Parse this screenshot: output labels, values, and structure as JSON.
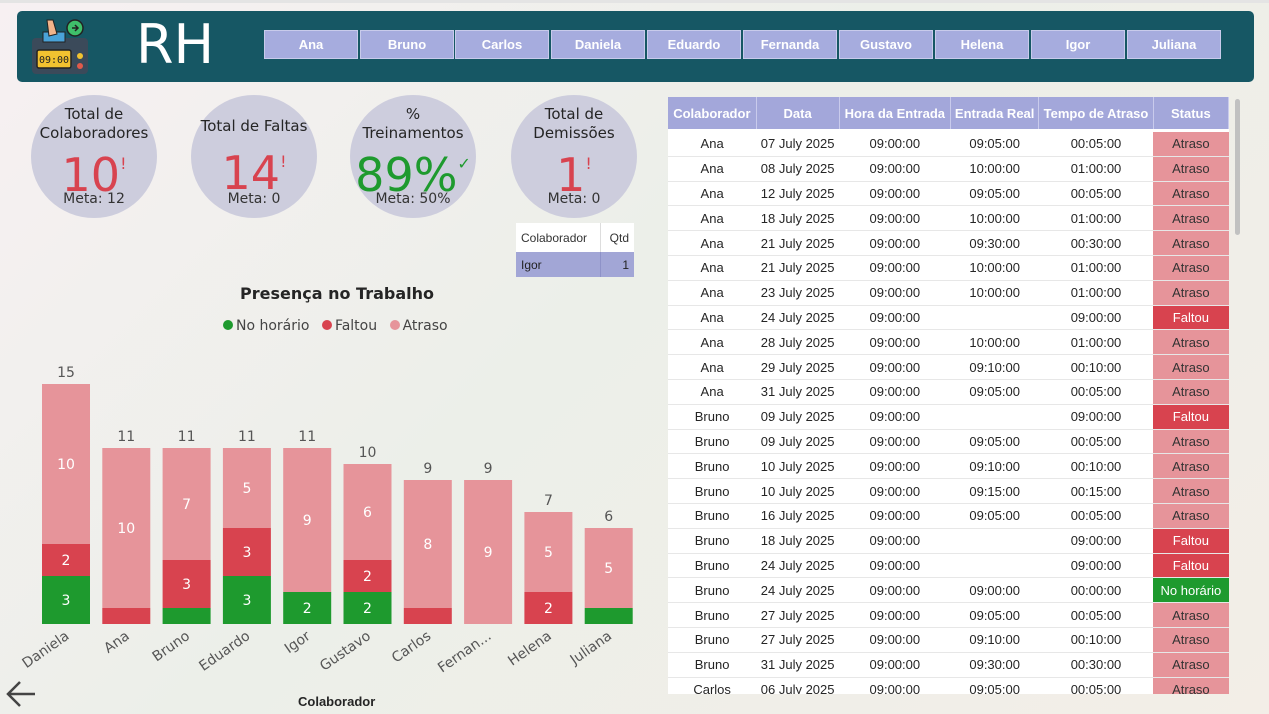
{
  "header": {
    "title": "RH",
    "buttons": [
      "Ana",
      "Bruno",
      "Carlos",
      "Daniela",
      "Eduardo",
      "Fernanda",
      "Gustavo",
      "Helena",
      "Igor",
      "Juliana"
    ],
    "logo_clock": "09:00"
  },
  "kpis": [
    {
      "title_lines": [
        "Total de",
        "Colaboradores"
      ],
      "value": "10",
      "mark": "!",
      "meta": "Meta: 12",
      "color": "#d8434f"
    },
    {
      "title_lines": [
        "Total de Faltas"
      ],
      "value": "14",
      "mark": "!",
      "meta": "Meta: 0",
      "color": "#d8434f"
    },
    {
      "title_lines": [
        "%",
        "Treinamentos"
      ],
      "value": "89%",
      "mark": "✓",
      "meta": "Meta: 50%",
      "color": "#1e9a2e"
    },
    {
      "title_lines": [
        "Total de",
        "Demissões"
      ],
      "value": "1",
      "mark": "!",
      "meta": "Meta: 0",
      "color": "#d8434f"
    }
  ],
  "mini_table": {
    "headers": [
      "Colaborador",
      "Qtd"
    ],
    "rows": [
      [
        "Igor",
        "1"
      ]
    ]
  },
  "chart_data": {
    "type": "bar",
    "stacked": true,
    "title": "Presença no Trabalho",
    "xlabel": "Colaborador",
    "categories": [
      "Daniela",
      "Ana",
      "Bruno",
      "Eduardo",
      "Igor",
      "Gustavo",
      "Carlos",
      "Fernan...",
      "Helena",
      "Juliana"
    ],
    "totals": [
      15,
      11,
      11,
      11,
      11,
      10,
      9,
      9,
      7,
      6
    ],
    "series": [
      {
        "name": "No horário",
        "color": "#1e9a2e",
        "values": [
          3,
          0,
          1,
          3,
          2,
          2,
          0,
          0,
          0,
          1
        ]
      },
      {
        "name": "Faltou",
        "color": "#d8434f",
        "values": [
          2,
          1,
          3,
          3,
          0,
          2,
          1,
          0,
          2,
          0
        ]
      },
      {
        "name": "Atraso",
        "color": "#e6949a",
        "values": [
          10,
          10,
          7,
          5,
          9,
          6,
          8,
          9,
          5,
          5
        ]
      }
    ],
    "data_labels": [
      [
        "3",
        "2",
        "10"
      ],
      [
        "",
        "",
        "10"
      ],
      [
        "",
        "3",
        "7"
      ],
      [
        "3",
        "3",
        "5"
      ],
      [
        "2",
        "",
        "9"
      ],
      [
        "2",
        "2",
        "6"
      ],
      [
        "",
        "",
        "8"
      ],
      [
        "",
        "",
        "9"
      ],
      [
        "",
        "2",
        "5"
      ],
      [
        "",
        "",
        "5"
      ]
    ]
  },
  "table": {
    "headers": [
      "Colaborador",
      "Data",
      "Hora da Entrada",
      "Entrada Real",
      "Tempo de Atraso",
      "Status"
    ],
    "rows": [
      [
        "Ana",
        "07 July 2025",
        "09:00:00",
        "09:05:00",
        "00:05:00",
        "Atraso"
      ],
      [
        "Ana",
        "08 July 2025",
        "09:00:00",
        "10:00:00",
        "01:00:00",
        "Atraso"
      ],
      [
        "Ana",
        "12 July 2025",
        "09:00:00",
        "09:05:00",
        "00:05:00",
        "Atraso"
      ],
      [
        "Ana",
        "18 July 2025",
        "09:00:00",
        "10:00:00",
        "01:00:00",
        "Atraso"
      ],
      [
        "Ana",
        "21 July 2025",
        "09:00:00",
        "09:30:00",
        "00:30:00",
        "Atraso"
      ],
      [
        "Ana",
        "21 July 2025",
        "09:00:00",
        "10:00:00",
        "01:00:00",
        "Atraso"
      ],
      [
        "Ana",
        "23 July 2025",
        "09:00:00",
        "10:00:00",
        "01:00:00",
        "Atraso"
      ],
      [
        "Ana",
        "24 July 2025",
        "09:00:00",
        "",
        "09:00:00",
        "Faltou"
      ],
      [
        "Ana",
        "28 July 2025",
        "09:00:00",
        "10:00:00",
        "01:00:00",
        "Atraso"
      ],
      [
        "Ana",
        "29 July 2025",
        "09:00:00",
        "09:10:00",
        "00:10:00",
        "Atraso"
      ],
      [
        "Ana",
        "31 July 2025",
        "09:00:00",
        "09:05:00",
        "00:05:00",
        "Atraso"
      ],
      [
        "Bruno",
        "09 July 2025",
        "09:00:00",
        "",
        "09:00:00",
        "Faltou"
      ],
      [
        "Bruno",
        "09 July 2025",
        "09:00:00",
        "09:05:00",
        "00:05:00",
        "Atraso"
      ],
      [
        "Bruno",
        "10 July 2025",
        "09:00:00",
        "09:10:00",
        "00:10:00",
        "Atraso"
      ],
      [
        "Bruno",
        "10 July 2025",
        "09:00:00",
        "09:15:00",
        "00:15:00",
        "Atraso"
      ],
      [
        "Bruno",
        "16 July 2025",
        "09:00:00",
        "09:05:00",
        "00:05:00",
        "Atraso"
      ],
      [
        "Bruno",
        "18 July 2025",
        "09:00:00",
        "",
        "09:00:00",
        "Faltou"
      ],
      [
        "Bruno",
        "24 July 2025",
        "09:00:00",
        "",
        "09:00:00",
        "Faltou"
      ],
      [
        "Bruno",
        "24 July 2025",
        "09:00:00",
        "09:00:00",
        "00:00:00",
        "No horário"
      ],
      [
        "Bruno",
        "27 July 2025",
        "09:00:00",
        "09:05:00",
        "00:05:00",
        "Atraso"
      ],
      [
        "Bruno",
        "27 July 2025",
        "09:00:00",
        "09:10:00",
        "00:10:00",
        "Atraso"
      ],
      [
        "Bruno",
        "31 July 2025",
        "09:00:00",
        "09:30:00",
        "00:30:00",
        "Atraso"
      ],
      [
        "Carlos",
        "06 July 2025",
        "09:00:00",
        "09:05:00",
        "00:05:00",
        "Atraso"
      ]
    ]
  }
}
